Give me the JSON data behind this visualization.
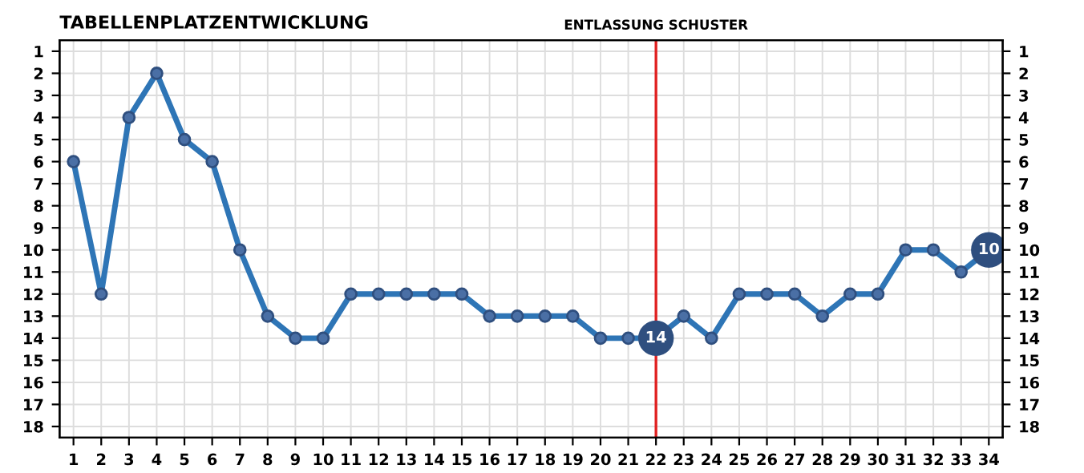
{
  "chart_data": {
    "type": "line",
    "title": "TABELLENPLATZENTWICKLUNG",
    "x": [
      1,
      2,
      3,
      4,
      5,
      6,
      7,
      8,
      9,
      10,
      11,
      12,
      13,
      14,
      15,
      16,
      17,
      18,
      19,
      20,
      21,
      22,
      23,
      24,
      25,
      26,
      27,
      28,
      29,
      30,
      31,
      32,
      33,
      34
    ],
    "series": [
      {
        "color": "#2e75b6",
        "values": [
          6,
          12,
          4,
          2,
          5,
          6,
          10,
          13,
          14,
          14,
          12,
          12,
          12,
          12,
          12,
          13,
          13,
          13,
          13,
          14,
          14,
          14,
          13,
          14,
          12,
          12,
          12,
          13,
          12,
          12,
          10,
          10,
          11,
          10
        ],
        "value_labels": [
          null,
          null,
          null,
          null,
          null,
          null,
          null,
          null,
          null,
          null,
          null,
          null,
          null,
          null,
          null,
          null,
          null,
          null,
          null,
          null,
          null,
          "14",
          null,
          null,
          null,
          null,
          null,
          null,
          null,
          null,
          null,
          null,
          null,
          "10"
        ]
      }
    ],
    "xlim": [
      0.5,
      34.5
    ],
    "xticks": [
      1,
      2,
      3,
      4,
      5,
      6,
      7,
      8,
      9,
      10,
      11,
      12,
      13,
      14,
      15,
      16,
      17,
      18,
      19,
      20,
      21,
      22,
      23,
      24,
      25,
      26,
      27,
      28,
      29,
      30,
      31,
      32,
      33,
      34
    ],
    "ylim": [
      18.5,
      0.5
    ],
    "yticks": [
      1,
      2,
      3,
      4,
      5,
      6,
      7,
      8,
      9,
      10,
      11,
      12,
      13,
      14,
      15,
      16,
      17,
      18
    ],
    "y2lim": [
      18.5,
      0.5
    ],
    "y2ticks": [
      1,
      2,
      3,
      4,
      5,
      6,
      7,
      8,
      9,
      10,
      11,
      12,
      13,
      14,
      15,
      16,
      17,
      18
    ],
    "ref_lines": [
      {
        "axis": "x",
        "value": 22,
        "label": "ENTLASSUNG SCHUSTER",
        "color": "#e02020"
      }
    ],
    "grid": true,
    "marker": "circle",
    "line_style": "solid",
    "legend": false
  }
}
